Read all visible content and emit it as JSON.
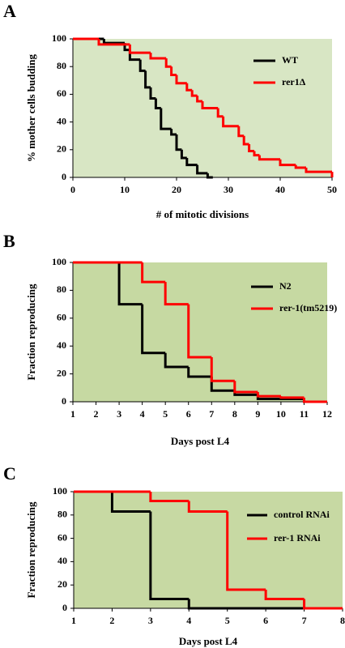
{
  "chart_data": [
    {
      "type": "line",
      "panel": "A",
      "x_label": "# of mitotic divisions",
      "y_label": "% mother cells budding",
      "background": "#d8e6c4",
      "xlim": [
        0,
        50
      ],
      "xticks": [
        0,
        10,
        20,
        30,
        40,
        50
      ],
      "ylim": [
        0,
        100
      ],
      "yticks": [
        0,
        20,
        40,
        60,
        80,
        100
      ],
      "series": [
        {
          "name": "WT",
          "color": "#000000",
          "x": [
            0,
            6,
            10,
            11,
            13,
            14,
            15,
            16,
            17,
            19,
            20,
            21,
            22,
            24,
            26,
            27
          ],
          "values": [
            100,
            97,
            92,
            85,
            77,
            65,
            57,
            50,
            35,
            31,
            20,
            14,
            9,
            3,
            0,
            0
          ]
        },
        {
          "name": "rer1Δ",
          "color": "#ff0000",
          "x": [
            0,
            5,
            11,
            15,
            18,
            19,
            20,
            22,
            23,
            24,
            25,
            28,
            29,
            32,
            33,
            34,
            35,
            36,
            40,
            43,
            45,
            50
          ],
          "values": [
            100,
            96,
            90,
            86,
            80,
            74,
            68,
            63,
            59,
            55,
            50,
            44,
            37,
            30,
            24,
            19,
            16,
            13,
            9,
            7,
            4,
            0
          ]
        }
      ]
    },
    {
      "type": "line",
      "panel": "B",
      "x_label": "Days post L4",
      "y_label": "Fraction reproducing",
      "background": "#c6d9a2",
      "xlim": [
        1,
        12
      ],
      "xticks": [
        1,
        2,
        3,
        4,
        5,
        6,
        7,
        8,
        9,
        10,
        11,
        12
      ],
      "ylim": [
        0,
        100
      ],
      "yticks": [
        0,
        20,
        40,
        60,
        80,
        100
      ],
      "series": [
        {
          "name": "N2",
          "color": "#000000",
          "x": [
            1,
            3,
            4,
            5,
            6,
            7,
            8,
            9,
            11
          ],
          "values": [
            100,
            70,
            35,
            25,
            18,
            8,
            5,
            2,
            0
          ]
        },
        {
          "name": "rer-1(tm5219)",
          "color": "#ff0000",
          "x": [
            1,
            4,
            5,
            6,
            7,
            8,
            9,
            10,
            11,
            12
          ],
          "values": [
            100,
            86,
            70,
            32,
            15,
            7,
            4,
            3,
            0,
            0
          ]
        }
      ]
    },
    {
      "type": "line",
      "panel": "C",
      "x_label": "Days post L4",
      "y_label": "Fraction reproducing",
      "background": "#c7d9a3",
      "xlim": [
        1,
        8
      ],
      "xticks": [
        1,
        2,
        3,
        4,
        5,
        6,
        7,
        8
      ],
      "ylim": [
        0,
        100
      ],
      "yticks": [
        0,
        20,
        40,
        60,
        80,
        100
      ],
      "series": [
        {
          "name": "control RNAi",
          "color": "#000000",
          "x": [
            1,
            2,
            3,
            4,
            7
          ],
          "values": [
            100,
            83,
            8,
            0,
            0
          ]
        },
        {
          "name": "rer-1 RNAi",
          "color": "#ff0000",
          "x": [
            1,
            3,
            4,
            5,
            6,
            7,
            8
          ],
          "values": [
            100,
            92,
            83,
            16,
            8,
            0,
            0
          ]
        }
      ]
    }
  ]
}
